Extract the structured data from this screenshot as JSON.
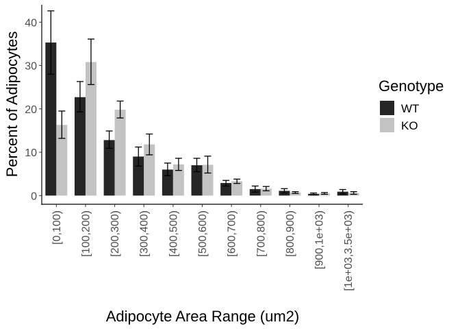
{
  "chart_data": {
    "type": "bar",
    "xlabel": "Adipocyte Area Range (um2)",
    "ylabel": "Percent of Adipocytes",
    "ylim": [
      -2,
      44
    ],
    "yticks": [
      0,
      10,
      20,
      30,
      40
    ],
    "yticks_text": [
      "0",
      "10",
      "20",
      "30",
      "40"
    ],
    "categories": [
      "[0,100)",
      "[100,200)",
      "[200,300)",
      "[300,400)",
      "[400,500)",
      "[500,600)",
      "[600,700)",
      "[700,800)",
      "[800,900)",
      "[900,1e+03)",
      "[1e+03,3.5e+03)"
    ],
    "legend": {
      "title": "Genotype",
      "position": "right"
    },
    "grid": false,
    "series": [
      {
        "name": "WT",
        "color": "#262626",
        "values": [
          35.3,
          22.7,
          12.8,
          9.0,
          6.0,
          7.0,
          2.9,
          1.5,
          1.1,
          0.4,
          0.9
        ],
        "err_low": [
          28.0,
          19.3,
          10.9,
          6.8,
          4.6,
          5.5,
          2.2,
          0.8,
          0.6,
          0.2,
          0.4
        ],
        "err_high": [
          42.6,
          26.3,
          14.9,
          11.2,
          7.5,
          8.6,
          3.5,
          2.2,
          1.6,
          0.6,
          1.4
        ]
      },
      {
        "name": "KO",
        "color": "#c3c3c3",
        "values": [
          16.3,
          30.8,
          19.8,
          11.8,
          7.2,
          7.1,
          3.3,
          1.6,
          0.7,
          0.5,
          0.6
        ],
        "err_low": [
          13.2,
          25.6,
          17.9,
          9.4,
          5.8,
          5.2,
          2.8,
          1.1,
          0.5,
          0.3,
          0.3
        ],
        "err_high": [
          19.5,
          36.1,
          21.8,
          14.2,
          8.6,
          9.1,
          3.8,
          2.1,
          0.9,
          0.7,
          0.9
        ]
      }
    ]
  }
}
